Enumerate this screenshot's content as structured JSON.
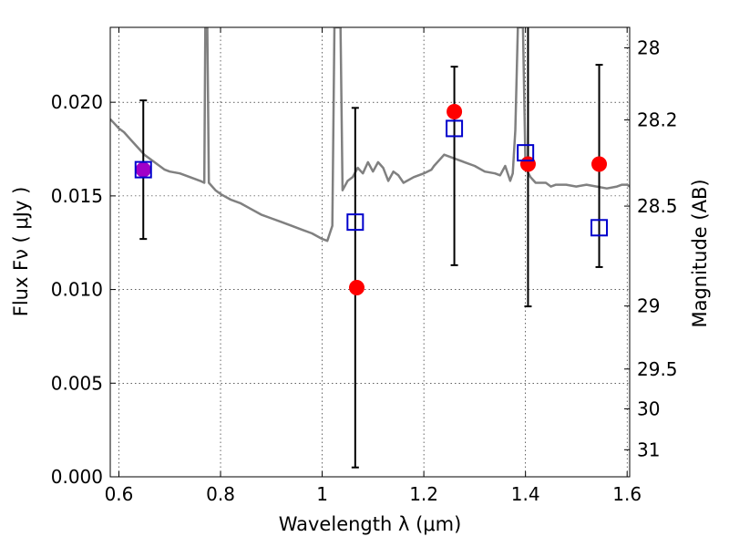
{
  "chart_data": {
    "type": "scatter",
    "xlabel": "Wavelength  λ (μm)",
    "ylabel": "Flux  Fν  ( μJy )",
    "ylabel_right": "Magnitude (AB)",
    "xlim": [
      0.583,
      1.605
    ],
    "ylim": [
      0.0,
      0.024
    ],
    "grid": true,
    "x_ticks": [
      {
        "value": 0.6,
        "label": "0.6"
      },
      {
        "value": 0.8,
        "label": "0.8"
      },
      {
        "value": 1.0,
        "label": "1"
      },
      {
        "value": 1.2,
        "label": "1.2"
      },
      {
        "value": 1.4,
        "label": "1.4"
      },
      {
        "value": 1.6,
        "label": "1.6"
      }
    ],
    "y_ticks": [
      {
        "value": 0.0,
        "label": "0.000"
      },
      {
        "value": 0.005,
        "label": "0.005"
      },
      {
        "value": 0.01,
        "label": "0.010"
      },
      {
        "value": 0.015,
        "label": "0.015"
      },
      {
        "value": 0.02,
        "label": "0.020"
      }
    ],
    "right_ticks": [
      {
        "value": 28.0,
        "label": "28"
      },
      {
        "value": 28.2,
        "label": "28.2"
      },
      {
        "value": 28.5,
        "label": "28.5"
      },
      {
        "value": 29.0,
        "label": "29"
      },
      {
        "value": 29.5,
        "label": "29.5"
      },
      {
        "value": 30.0,
        "label": "30"
      },
      {
        "value": 31.0,
        "label": "31"
      }
    ],
    "series": [
      {
        "kind": "spectrum-line",
        "color": "#808080",
        "points": [
          [
            0.583,
            0.0191
          ],
          [
            0.59,
            0.0189
          ],
          [
            0.6,
            0.0186
          ],
          [
            0.61,
            0.0184
          ],
          [
            0.62,
            0.0181
          ],
          [
            0.63,
            0.0178
          ],
          [
            0.64,
            0.0175
          ],
          [
            0.65,
            0.0172
          ],
          [
            0.66,
            0.017
          ],
          [
            0.67,
            0.0168
          ],
          [
            0.68,
            0.0166
          ],
          [
            0.69,
            0.0164
          ],
          [
            0.7,
            0.0163
          ],
          [
            0.72,
            0.0162
          ],
          [
            0.74,
            0.016
          ],
          [
            0.76,
            0.0158
          ],
          [
            0.768,
            0.0157
          ],
          [
            0.77,
            0.024
          ],
          [
            0.774,
            0.024
          ],
          [
            0.777,
            0.0157
          ],
          [
            0.79,
            0.0153
          ],
          [
            0.8,
            0.0151
          ],
          [
            0.82,
            0.0148
          ],
          [
            0.84,
            0.0146
          ],
          [
            0.86,
            0.0143
          ],
          [
            0.88,
            0.014
          ],
          [
            0.9,
            0.0138
          ],
          [
            0.92,
            0.0136
          ],
          [
            0.94,
            0.0134
          ],
          [
            0.96,
            0.0132
          ],
          [
            0.98,
            0.013
          ],
          [
            1.0,
            0.0127
          ],
          [
            1.01,
            0.0126
          ],
          [
            1.02,
            0.0134
          ],
          [
            1.024,
            0.024
          ],
          [
            1.036,
            0.024
          ],
          [
            1.04,
            0.0153
          ],
          [
            1.05,
            0.0158
          ],
          [
            1.06,
            0.016
          ],
          [
            1.07,
            0.0165
          ],
          [
            1.08,
            0.0162
          ],
          [
            1.09,
            0.0168
          ],
          [
            1.1,
            0.0163
          ],
          [
            1.11,
            0.0168
          ],
          [
            1.12,
            0.0165
          ],
          [
            1.13,
            0.0158
          ],
          [
            1.14,
            0.0163
          ],
          [
            1.15,
            0.0161
          ],
          [
            1.16,
            0.0157
          ],
          [
            1.18,
            0.016
          ],
          [
            1.2,
            0.0162
          ],
          [
            1.215,
            0.0164
          ],
          [
            1.22,
            0.0166
          ],
          [
            1.23,
            0.0169
          ],
          [
            1.24,
            0.0172
          ],
          [
            1.26,
            0.017
          ],
          [
            1.28,
            0.0168
          ],
          [
            1.3,
            0.0166
          ],
          [
            1.32,
            0.0163
          ],
          [
            1.34,
            0.0162
          ],
          [
            1.35,
            0.0161
          ],
          [
            1.36,
            0.0166
          ],
          [
            1.37,
            0.0158
          ],
          [
            1.375,
            0.0162
          ],
          [
            1.38,
            0.0185
          ],
          [
            1.385,
            0.024
          ],
          [
            1.395,
            0.024
          ],
          [
            1.4,
            0.0165
          ],
          [
            1.41,
            0.016
          ],
          [
            1.42,
            0.0157
          ],
          [
            1.44,
            0.0157
          ],
          [
            1.45,
            0.0155
          ],
          [
            1.46,
            0.0156
          ],
          [
            1.48,
            0.0156
          ],
          [
            1.5,
            0.0155
          ],
          [
            1.52,
            0.0156
          ],
          [
            1.54,
            0.0155
          ],
          [
            1.56,
            0.0154
          ],
          [
            1.58,
            0.0155
          ],
          [
            1.59,
            0.0156
          ],
          [
            1.6,
            0.0156
          ],
          [
            1.605,
            0.0155
          ]
        ]
      },
      {
        "kind": "errorbars",
        "color": "#000000",
        "points": [
          {
            "x": 0.648,
            "y": 0.0164,
            "err": 0.0037
          },
          {
            "x": 1.065,
            "y": 0.0101,
            "err": 0.0096
          },
          {
            "x": 1.26,
            "y": 0.0166,
            "err": 0.0053
          },
          {
            "x": 1.405,
            "y": 0.0166,
            "err": 0.0075
          },
          {
            "x": 1.545,
            "y": 0.0166,
            "err": 0.0054
          }
        ]
      },
      {
        "kind": "open-squares",
        "color": "#0000cc",
        "points": [
          [
            0.648,
            0.0164
          ],
          [
            1.065,
            0.0136
          ],
          [
            1.26,
            0.0186
          ],
          [
            1.4,
            0.0173
          ],
          [
            1.545,
            0.0133
          ]
        ]
      },
      {
        "kind": "filled-circles",
        "color": "#ff0000",
        "points": [
          [
            0.648,
            0.0164
          ],
          [
            1.068,
            0.0101
          ],
          [
            1.26,
            0.0195
          ],
          [
            1.405,
            0.0167
          ],
          [
            1.545,
            0.0167
          ]
        ],
        "highlight_color": "#a000c8",
        "highlight_index": 0
      }
    ]
  }
}
